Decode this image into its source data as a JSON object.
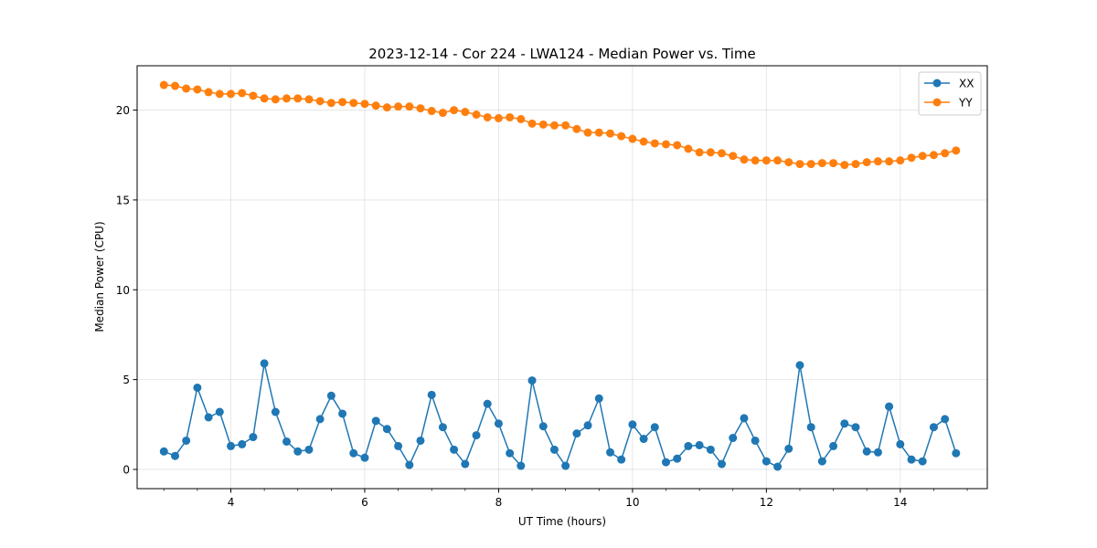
{
  "chart_data": {
    "type": "line",
    "title": "2023-12-14 - Cor 224 - LWA124 - Median Power vs. Time",
    "xlabel": "UT Time (hours)",
    "ylabel": "Median Power (CPU)",
    "xlim": [
      2.6,
      15.3
    ],
    "ylim": [
      -1.07,
      22.47
    ],
    "xticks": [
      4,
      6,
      8,
      10,
      12,
      14
    ],
    "xtick_labels": [
      "4",
      "6",
      "8",
      "10",
      "12",
      "14"
    ],
    "yticks": [
      0,
      5,
      10,
      15,
      20
    ],
    "ytick_labels": [
      "0",
      "5",
      "10",
      "15",
      "20"
    ],
    "grid": true,
    "legend_position": "top-right",
    "x": [
      3.0,
      3.167,
      3.333,
      3.5,
      3.667,
      3.833,
      4.0,
      4.167,
      4.333,
      4.5,
      4.667,
      4.833,
      5.0,
      5.167,
      5.333,
      5.5,
      5.667,
      5.833,
      6.0,
      6.167,
      6.333,
      6.5,
      6.667,
      6.833,
      7.0,
      7.167,
      7.333,
      7.5,
      7.667,
      7.833,
      8.0,
      8.167,
      8.333,
      8.5,
      8.667,
      8.833,
      9.0,
      9.167,
      9.333,
      9.5,
      9.667,
      9.833,
      10.0,
      10.167,
      10.333,
      10.5,
      10.667,
      10.833,
      11.0,
      11.167,
      11.333,
      11.5,
      11.667,
      11.833,
      12.0,
      12.167,
      12.333,
      12.5,
      12.667,
      12.833,
      13.0,
      13.167,
      13.333,
      13.5,
      13.667,
      13.833,
      14.0,
      14.167,
      14.333,
      14.5,
      14.667,
      14.833
    ],
    "series": [
      {
        "name": "XX",
        "color": "#1f77b4",
        "values": [
          1.0,
          0.75,
          1.6,
          4.55,
          2.9,
          3.2,
          1.3,
          1.4,
          1.8,
          5.9,
          3.2,
          1.55,
          1.0,
          1.1,
          2.8,
          4.1,
          3.1,
          0.9,
          0.65,
          2.7,
          2.25,
          1.3,
          0.25,
          1.6,
          4.15,
          2.35,
          1.1,
          0.3,
          1.9,
          3.65,
          2.55,
          0.9,
          0.2,
          4.95,
          2.4,
          1.1,
          0.2,
          2.0,
          2.45,
          3.95,
          0.95,
          0.55,
          2.5,
          1.7,
          2.35,
          0.4,
          0.6,
          1.3,
          1.35,
          1.1,
          0.3,
          1.75,
          2.85,
          1.6,
          0.45,
          0.15,
          1.15,
          5.8,
          2.35,
          0.45,
          1.3,
          2.55,
          2.35,
          1.0,
          0.95,
          3.5,
          1.4,
          0.55,
          0.45,
          2.35,
          2.8,
          0.9
        ]
      },
      {
        "name": "YY",
        "color": "#ff7f0e",
        "values": [
          21.4,
          21.35,
          21.2,
          21.15,
          21.0,
          20.9,
          20.9,
          20.95,
          20.8,
          20.65,
          20.6,
          20.65,
          20.65,
          20.6,
          20.5,
          20.4,
          20.45,
          20.4,
          20.35,
          20.25,
          20.15,
          20.2,
          20.2,
          20.1,
          19.95,
          19.85,
          20.0,
          19.9,
          19.75,
          19.6,
          19.55,
          19.6,
          19.5,
          19.25,
          19.2,
          19.15,
          19.15,
          18.95,
          18.75,
          18.75,
          18.7,
          18.55,
          18.4,
          18.25,
          18.15,
          18.1,
          18.05,
          17.85,
          17.65,
          17.65,
          17.6,
          17.45,
          17.25,
          17.2,
          17.2,
          17.2,
          17.1,
          17.0,
          17.0,
          17.05,
          17.05,
          16.95,
          17.0,
          17.1,
          17.15,
          17.15,
          17.2,
          17.35,
          17.45,
          17.5,
          17.6,
          17.75
        ]
      }
    ]
  }
}
